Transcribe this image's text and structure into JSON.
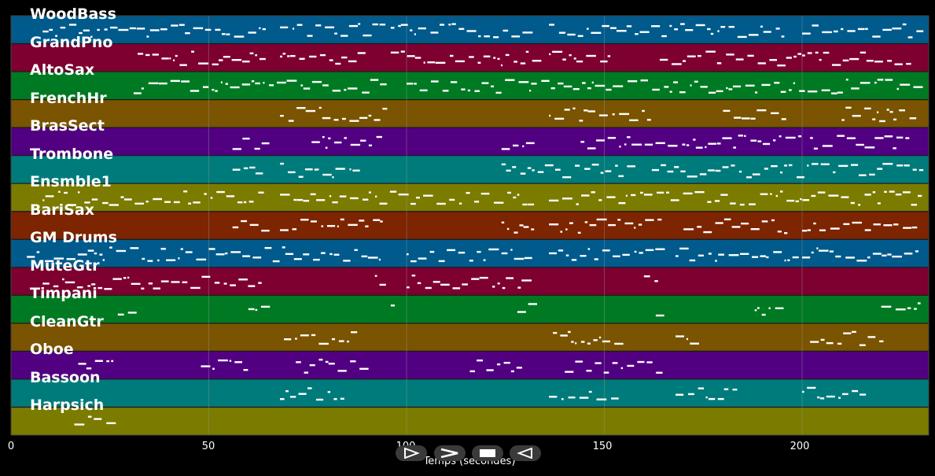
{
  "tracks": [
    {
      "name": "WoodBass",
      "color": "#005a8c"
    },
    {
      "name": "GrandPno",
      "color": "#7d0030"
    },
    {
      "name": "AltoSax",
      "color": "#007a22"
    },
    {
      "name": "FrenchHr",
      "color": "#7a5400"
    },
    {
      "name": "BrasSect",
      "color": "#520082"
    },
    {
      "name": "Trombone",
      "color": "#007b7b"
    },
    {
      "name": "Ensmble1",
      "color": "#7b7b00"
    },
    {
      "name": "BariSax",
      "color": "#7d2400"
    },
    {
      "name": "GM Drums",
      "color": "#005a8c"
    },
    {
      "name": "MuteGtr",
      "color": "#7d0030"
    },
    {
      "name": "Timpani",
      "color": "#007a22"
    },
    {
      "name": "CleanGtr",
      "color": "#7a5400"
    },
    {
      "name": "Oboe",
      "color": "#520082"
    },
    {
      "name": "Bassoon",
      "color": "#007b7b"
    },
    {
      "name": "Harpsich",
      "color": "#7b7b00"
    }
  ],
  "axis": {
    "xlabel": "Temps (secondes)",
    "ticks": [
      "0",
      "50",
      "100",
      "150",
      "200"
    ],
    "xlim": [
      0,
      232
    ]
  },
  "controls": [
    {
      "name": "play-icon"
    },
    {
      "name": "fast-forward-icon"
    },
    {
      "name": "stop-icon"
    },
    {
      "name": "rewind-icon"
    }
  ],
  "colors": {
    "background": "#000000",
    "note": "#ffffff",
    "grid": "#9a9a9a"
  }
}
